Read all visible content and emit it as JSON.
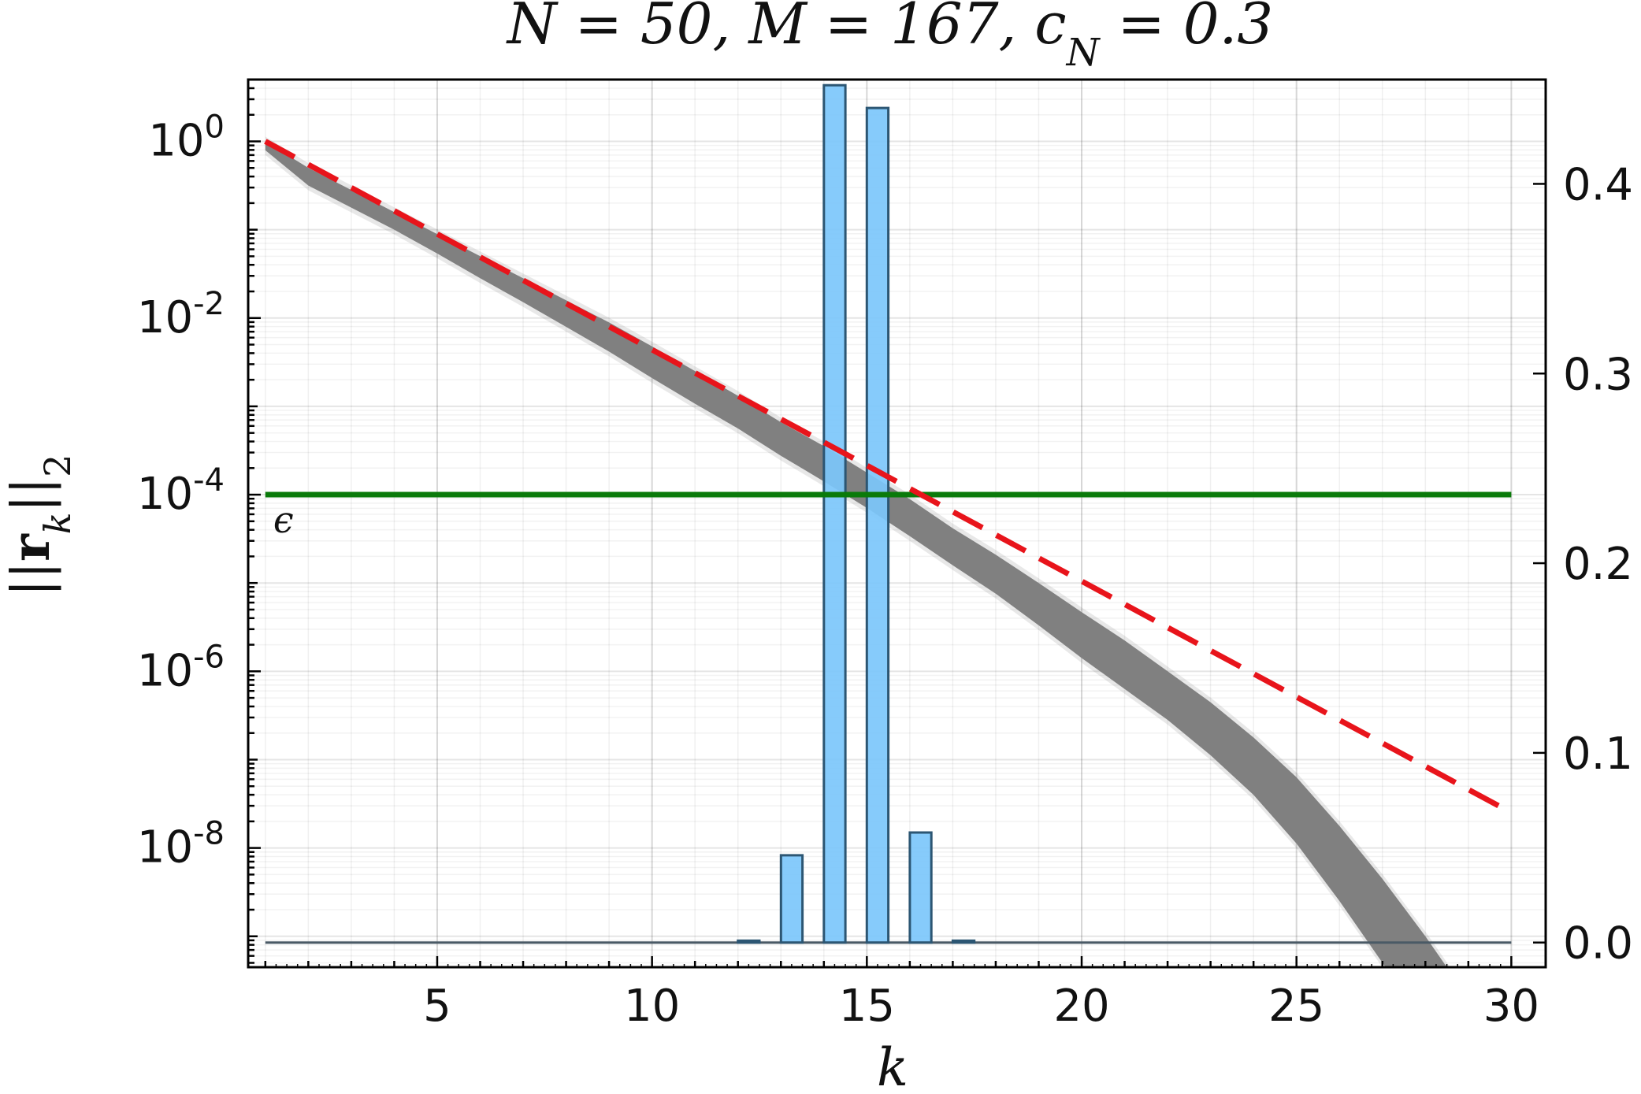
{
  "chart_data": {
    "type": "line",
    "title": "N = 50, M = 167, c_N = 0.3",
    "xlabel": "k",
    "ylabel": "||r_k||_2",
    "xlim": [
      0.6,
      30.8
    ],
    "x_ticks": [
      5,
      10,
      15,
      20,
      25,
      30
    ],
    "x_tick_labels": [
      "5",
      "10",
      "15",
      "20",
      "25",
      "30"
    ],
    "y_left_scale": "log",
    "y_left_log_range": [
      -9.35,
      0.7
    ],
    "y_left_ticks": [
      {
        "exp": 0,
        "base": "10",
        "sup": "0"
      },
      {
        "exp": -2,
        "base": "10",
        "sup": "-2"
      },
      {
        "exp": -4,
        "base": "10",
        "sup": "-4"
      },
      {
        "exp": -6,
        "base": "10",
        "sup": "-6"
      },
      {
        "exp": -8,
        "base": "10",
        "sup": "-8"
      }
    ],
    "y_right_ylim": [
      -0.013,
      0.455
    ],
    "y_right_ticks": [
      0.0,
      0.1,
      0.2,
      0.3,
      0.4
    ],
    "y_right_tick_labels": [
      "0.0",
      "0.1",
      "0.2",
      "0.3",
      "0.4"
    ],
    "grid": true,
    "series": [
      {
        "type": "area",
        "axis": "left",
        "color": "#808080",
        "x": [
          1,
          2,
          3,
          4,
          5,
          6,
          7,
          8,
          9,
          10,
          11,
          12,
          13,
          14,
          15,
          16,
          17,
          18,
          19,
          20,
          21,
          22,
          23,
          24,
          25,
          26,
          27,
          28,
          29,
          30
        ],
        "log10_upper": [
          0.0,
          -0.3,
          -0.55,
          -0.8,
          -1.05,
          -1.3,
          -1.55,
          -1.8,
          -2.05,
          -2.32,
          -2.6,
          -2.88,
          -3.18,
          -3.45,
          -3.75,
          -4.05,
          -4.38,
          -4.68,
          -5.0,
          -5.33,
          -5.65,
          -6.0,
          -6.35,
          -6.75,
          -7.2,
          -7.75,
          -8.35,
          -9.0,
          -9.7,
          -10.4
        ],
        "log10_lower": [
          -0.1,
          -0.5,
          -0.75,
          -1.0,
          -1.27,
          -1.55,
          -1.82,
          -2.1,
          -2.38,
          -2.68,
          -2.97,
          -3.25,
          -3.56,
          -3.85,
          -4.15,
          -4.47,
          -4.8,
          -5.12,
          -5.48,
          -5.85,
          -6.2,
          -6.55,
          -6.95,
          -7.4,
          -7.95,
          -8.6,
          -9.3,
          -10.0,
          -10.6,
          -11.2
        ]
      },
      {
        "type": "line",
        "axis": "left",
        "color": "#e8141b",
        "dashed": true,
        "x": [
          1,
          30
        ],
        "log10_y": [
          0.0,
          -7.6
        ]
      },
      {
        "type": "hline",
        "axis": "left",
        "color": "#0a7a0a",
        "log10_y": -4,
        "x": [
          1,
          30
        ],
        "label": "ϵ"
      },
      {
        "type": "bar",
        "axis": "right",
        "color": "#7cc7fb",
        "edge_color": "#2c5673",
        "width": 0.5,
        "x": [
          12,
          13,
          14,
          15,
          16,
          17
        ],
        "values": [
          0.001,
          0.046,
          0.452,
          0.44,
          0.058,
          0.001
        ]
      }
    ]
  }
}
